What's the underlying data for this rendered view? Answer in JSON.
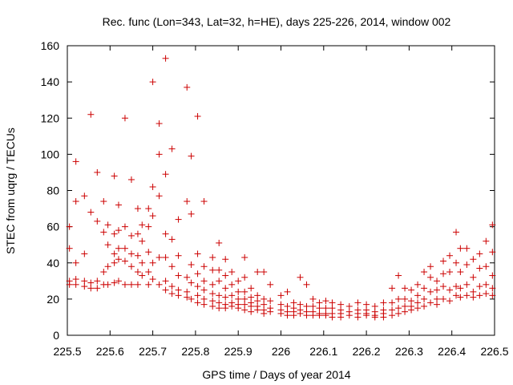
{
  "chart_data": {
    "type": "scatter",
    "title": "Rec. func (Lon=343, Lat=32, h=HE), days 225-226, 2014, window 002",
    "xlabel": "GPS time / Days of year 2014",
    "ylabel": "STEC from uqrg / TECUs",
    "xlim": [
      225.5,
      226.5
    ],
    "ylim": [
      0,
      160
    ],
    "x_ticks": [
      "225.5",
      "225.6",
      "225.7",
      "225.8",
      "225.9",
      "226",
      "226.1",
      "226.2",
      "226.3",
      "226.4",
      "226.5"
    ],
    "y_ticks": [
      "0",
      "20",
      "40",
      "60",
      "80",
      "100",
      "120",
      "140",
      "160"
    ],
    "grid": false,
    "marker": "plus",
    "marker_color": "#cc0000",
    "series": [
      {
        "points": [
          [
            225.505,
            60
          ],
          [
            225.505,
            48
          ],
          [
            225.505,
            30
          ],
          [
            225.505,
            28
          ],
          [
            225.52,
            96
          ],
          [
            225.52,
            74
          ],
          [
            225.52,
            40
          ],
          [
            225.52,
            31
          ],
          [
            225.52,
            28
          ],
          [
            225.54,
            77
          ],
          [
            225.54,
            45
          ],
          [
            225.54,
            30
          ],
          [
            225.54,
            27
          ],
          [
            225.555,
            122
          ],
          [
            225.555,
            68
          ],
          [
            225.555,
            29
          ],
          [
            225.555,
            26
          ],
          [
            225.57,
            90
          ],
          [
            225.57,
            63
          ],
          [
            225.57,
            30
          ],
          [
            225.57,
            26
          ],
          [
            225.585,
            74
          ],
          [
            225.585,
            57
          ],
          [
            225.585,
            35
          ],
          [
            225.585,
            28
          ],
          [
            225.595,
            61
          ],
          [
            225.595,
            50
          ],
          [
            225.595,
            38
          ],
          [
            225.595,
            28
          ],
          [
            225.61,
            88
          ],
          [
            225.61,
            56
          ],
          [
            225.61,
            45
          ],
          [
            225.61,
            40
          ],
          [
            225.61,
            29
          ],
          [
            225.62,
            72
          ],
          [
            225.62,
            58
          ],
          [
            225.62,
            48
          ],
          [
            225.62,
            42
          ],
          [
            225.62,
            30
          ],
          [
            225.635,
            120
          ],
          [
            225.635,
            60
          ],
          [
            225.635,
            48
          ],
          [
            225.635,
            41
          ],
          [
            225.635,
            28
          ],
          [
            225.65,
            86
          ],
          [
            225.65,
            55
          ],
          [
            225.65,
            45
          ],
          [
            225.65,
            38
          ],
          [
            225.65,
            28
          ],
          [
            225.665,
            70
          ],
          [
            225.665,
            56
          ],
          [
            225.665,
            44
          ],
          [
            225.665,
            35
          ],
          [
            225.665,
            28
          ],
          [
            225.675,
            61
          ],
          [
            225.675,
            52
          ],
          [
            225.675,
            40
          ],
          [
            225.675,
            33
          ],
          [
            225.69,
            70
          ],
          [
            225.69,
            60
          ],
          [
            225.69,
            46
          ],
          [
            225.69,
            35
          ],
          [
            225.69,
            28
          ],
          [
            225.7,
            140
          ],
          [
            225.7,
            82
          ],
          [
            225.7,
            66
          ],
          [
            225.7,
            40
          ],
          [
            225.7,
            31
          ],
          [
            225.715,
            117
          ],
          [
            225.715,
            100
          ],
          [
            225.715,
            77
          ],
          [
            225.715,
            43
          ],
          [
            225.715,
            28
          ],
          [
            225.73,
            153
          ],
          [
            225.73,
            89
          ],
          [
            225.73,
            56
          ],
          [
            225.73,
            43
          ],
          [
            225.73,
            30
          ],
          [
            225.73,
            25
          ],
          [
            225.745,
            103
          ],
          [
            225.745,
            53
          ],
          [
            225.745,
            38
          ],
          [
            225.745,
            27
          ],
          [
            225.745,
            23
          ],
          [
            225.76,
            64
          ],
          [
            225.76,
            44
          ],
          [
            225.76,
            33
          ],
          [
            225.76,
            25
          ],
          [
            225.76,
            22
          ],
          [
            225.78,
            137
          ],
          [
            225.78,
            74
          ],
          [
            225.78,
            32
          ],
          [
            225.78,
            24
          ],
          [
            225.78,
            21
          ],
          [
            225.79,
            99
          ],
          [
            225.79,
            67
          ],
          [
            225.79,
            39
          ],
          [
            225.79,
            29
          ],
          [
            225.79,
            20
          ],
          [
            225.805,
            121
          ],
          [
            225.805,
            45
          ],
          [
            225.805,
            34
          ],
          [
            225.805,
            27
          ],
          [
            225.805,
            22
          ],
          [
            225.805,
            18
          ],
          [
            225.82,
            74
          ],
          [
            225.82,
            38
          ],
          [
            225.82,
            30
          ],
          [
            225.82,
            25
          ],
          [
            225.82,
            20
          ],
          [
            225.82,
            17
          ],
          [
            225.84,
            43
          ],
          [
            225.84,
            36
          ],
          [
            225.84,
            28
          ],
          [
            225.84,
            23
          ],
          [
            225.84,
            19
          ],
          [
            225.84,
            16
          ],
          [
            225.855,
            51
          ],
          [
            225.855,
            36
          ],
          [
            225.855,
            30
          ],
          [
            225.855,
            22
          ],
          [
            225.855,
            18
          ],
          [
            225.855,
            15
          ],
          [
            225.87,
            42
          ],
          [
            225.87,
            33
          ],
          [
            225.87,
            26
          ],
          [
            225.87,
            21
          ],
          [
            225.87,
            17
          ],
          [
            225.87,
            15
          ],
          [
            225.885,
            35
          ],
          [
            225.885,
            28
          ],
          [
            225.885,
            22
          ],
          [
            225.885,
            18
          ],
          [
            225.885,
            16
          ],
          [
            225.9,
            30
          ],
          [
            225.9,
            24
          ],
          [
            225.9,
            20
          ],
          [
            225.9,
            17
          ],
          [
            225.9,
            15
          ],
          [
            225.915,
            43
          ],
          [
            225.915,
            32
          ],
          [
            225.915,
            24
          ],
          [
            225.915,
            20
          ],
          [
            225.915,
            17
          ],
          [
            225.915,
            14
          ],
          [
            225.93,
            26
          ],
          [
            225.93,
            21
          ],
          [
            225.93,
            18
          ],
          [
            225.93,
            16
          ],
          [
            225.93,
            13
          ],
          [
            225.945,
            35
          ],
          [
            225.945,
            22
          ],
          [
            225.945,
            19
          ],
          [
            225.945,
            16
          ],
          [
            225.945,
            14
          ],
          [
            225.96,
            35
          ],
          [
            225.96,
            20
          ],
          [
            225.96,
            17
          ],
          [
            225.96,
            14
          ],
          [
            225.96,
            12
          ],
          [
            225.975,
            28
          ],
          [
            225.975,
            19
          ],
          [
            225.975,
            15
          ],
          [
            225.975,
            13
          ],
          [
            226.0,
            22
          ],
          [
            226.0,
            17
          ],
          [
            226.0,
            14
          ],
          [
            226.0,
            12
          ],
          [
            226.015,
            24
          ],
          [
            226.015,
            16
          ],
          [
            226.015,
            13
          ],
          [
            226.015,
            11
          ],
          [
            226.03,
            18
          ],
          [
            226.03,
            15
          ],
          [
            226.03,
            13
          ],
          [
            226.03,
            11
          ],
          [
            226.045,
            32
          ],
          [
            226.045,
            17
          ],
          [
            226.045,
            14
          ],
          [
            226.045,
            12
          ],
          [
            226.06,
            28
          ],
          [
            226.06,
            16
          ],
          [
            226.06,
            13
          ],
          [
            226.06,
            11
          ],
          [
            226.075,
            20
          ],
          [
            226.075,
            16
          ],
          [
            226.075,
            13
          ],
          [
            226.075,
            11
          ],
          [
            226.09,
            18
          ],
          [
            226.09,
            15
          ],
          [
            226.09,
            12
          ],
          [
            226.09,
            11
          ],
          [
            226.105,
            19
          ],
          [
            226.105,
            15
          ],
          [
            226.105,
            12
          ],
          [
            226.105,
            11
          ],
          [
            226.12,
            18
          ],
          [
            226.12,
            15
          ],
          [
            226.12,
            12
          ],
          [
            226.12,
            10
          ],
          [
            226.14,
            17
          ],
          [
            226.14,
            14
          ],
          [
            226.14,
            12
          ],
          [
            226.14,
            10
          ],
          [
            226.16,
            16
          ],
          [
            226.16,
            13
          ],
          [
            226.16,
            11
          ],
          [
            226.18,
            18
          ],
          [
            226.18,
            14
          ],
          [
            226.18,
            12
          ],
          [
            226.18,
            10
          ],
          [
            226.2,
            17
          ],
          [
            226.2,
            14
          ],
          [
            226.2,
            12
          ],
          [
            226.2,
            11
          ],
          [
            226.22,
            16
          ],
          [
            226.22,
            13
          ],
          [
            226.22,
            11
          ],
          [
            226.22,
            10
          ],
          [
            226.24,
            18
          ],
          [
            226.24,
            14
          ],
          [
            226.24,
            12
          ],
          [
            226.24,
            10
          ],
          [
            226.26,
            26
          ],
          [
            226.26,
            18
          ],
          [
            226.26,
            14
          ],
          [
            226.26,
            11
          ],
          [
            226.275,
            33
          ],
          [
            226.275,
            20
          ],
          [
            226.275,
            15
          ],
          [
            226.275,
            12
          ],
          [
            226.29,
            26
          ],
          [
            226.29,
            20
          ],
          [
            226.29,
            16
          ],
          [
            226.29,
            13
          ],
          [
            226.305,
            25
          ],
          [
            226.305,
            19
          ],
          [
            226.305,
            16
          ],
          [
            226.305,
            14
          ],
          [
            226.32,
            28
          ],
          [
            226.32,
            22
          ],
          [
            226.32,
            18
          ],
          [
            226.32,
            15
          ],
          [
            226.335,
            35
          ],
          [
            226.335,
            26
          ],
          [
            226.335,
            20
          ],
          [
            226.335,
            16
          ],
          [
            226.35,
            38
          ],
          [
            226.35,
            32
          ],
          [
            226.35,
            24
          ],
          [
            226.35,
            18
          ],
          [
            226.365,
            30
          ],
          [
            226.365,
            25
          ],
          [
            226.365,
            20
          ],
          [
            226.365,
            17
          ],
          [
            226.38,
            41
          ],
          [
            226.38,
            34
          ],
          [
            226.38,
            27
          ],
          [
            226.38,
            20
          ],
          [
            226.395,
            44
          ],
          [
            226.395,
            35
          ],
          [
            226.395,
            25
          ],
          [
            226.395,
            19
          ],
          [
            226.41,
            57
          ],
          [
            226.41,
            40
          ],
          [
            226.41,
            27
          ],
          [
            226.41,
            22
          ],
          [
            226.42,
            48
          ],
          [
            226.42,
            35
          ],
          [
            226.42,
            26
          ],
          [
            226.42,
            21
          ],
          [
            226.435,
            48
          ],
          [
            226.435,
            39
          ],
          [
            226.435,
            28
          ],
          [
            226.435,
            22
          ],
          [
            226.45,
            42
          ],
          [
            226.45,
            32
          ],
          [
            226.45,
            24
          ],
          [
            226.45,
            21
          ],
          [
            226.465,
            45
          ],
          [
            226.465,
            37
          ],
          [
            226.465,
            27
          ],
          [
            226.465,
            22
          ],
          [
            226.48,
            52
          ],
          [
            226.48,
            38
          ],
          [
            226.48,
            28
          ],
          [
            226.48,
            23
          ],
          [
            226.495,
            61
          ],
          [
            226.495,
            46
          ],
          [
            226.495,
            33
          ],
          [
            226.495,
            26
          ],
          [
            226.495,
            22
          ]
        ]
      }
    ]
  }
}
